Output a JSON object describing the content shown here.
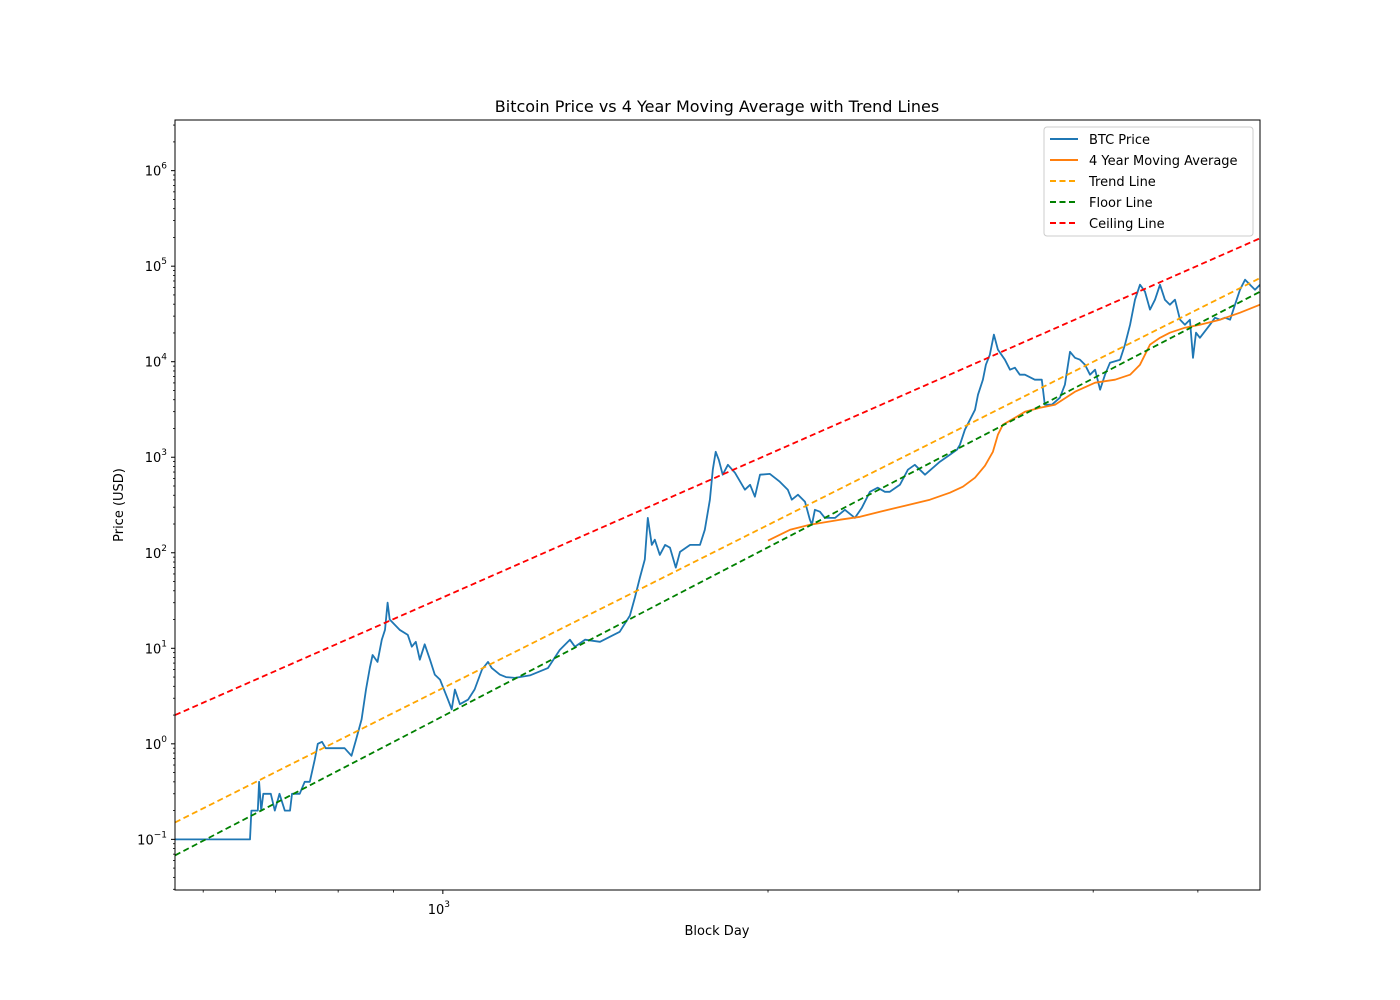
{
  "chart_data": {
    "type": "line",
    "title": "Bitcoin Price vs 4 Year Moving Average with Trend Lines",
    "xlabel": "Block Day",
    "ylabel": "Price (USD)",
    "xscale": "log",
    "yscale": "log",
    "xlim": [
      565,
      5708
    ],
    "ylim": [
      0.0295,
      3390000
    ],
    "grid": false,
    "legend_position": "top-right",
    "x_tick_labels": [
      {
        "value": 1000,
        "base": "10",
        "exp": "3"
      }
    ],
    "y_tick_labels": [
      {
        "value": 0.1,
        "base": "10",
        "exp": "−1"
      },
      {
        "value": 1,
        "base": "10",
        "exp": "0"
      },
      {
        "value": 10,
        "base": "10",
        "exp": "1"
      },
      {
        "value": 100,
        "base": "10",
        "exp": "2"
      },
      {
        "value": 1000,
        "base": "10",
        "exp": "3"
      },
      {
        "value": 10000,
        "base": "10",
        "exp": "4"
      },
      {
        "value": 100000,
        "base": "10",
        "exp": "5"
      },
      {
        "value": 1000000,
        "base": "10",
        "exp": "6"
      }
    ],
    "series": [
      {
        "name": "BTC Price",
        "color": "#1f77b4",
        "style": "solid",
        "points": [
          [
            565,
            0.1
          ],
          [
            663,
            0.1
          ],
          [
            665,
            0.2
          ],
          [
            674,
            0.2
          ],
          [
            676,
            0.4
          ],
          [
            679,
            0.2
          ],
          [
            682,
            0.3
          ],
          [
            693,
            0.3
          ],
          [
            699,
            0.2
          ],
          [
            706,
            0.3
          ],
          [
            714,
            0.2
          ],
          [
            722,
            0.2
          ],
          [
            725,
            0.3
          ],
          [
            737,
            0.3
          ],
          [
            745,
            0.4
          ],
          [
            753,
            0.4
          ],
          [
            761,
            0.68
          ],
          [
            766,
            1.0
          ],
          [
            773,
            1.05
          ],
          [
            779,
            0.9
          ],
          [
            811,
            0.9
          ],
          [
            823,
            0.75
          ],
          [
            831,
            1.1
          ],
          [
            841,
            1.8
          ],
          [
            849,
            3.7
          ],
          [
            856,
            6.3
          ],
          [
            861,
            8.5
          ],
          [
            870,
            7.2
          ],
          [
            878,
            12.3
          ],
          [
            884,
            15.6
          ],
          [
            889,
            30
          ],
          [
            893,
            20
          ],
          [
            912,
            15.6
          ],
          [
            928,
            13.8
          ],
          [
            936,
            10.4
          ],
          [
            944,
            11.7
          ],
          [
            952,
            7.6
          ],
          [
            962,
            11
          ],
          [
            973,
            7.6
          ],
          [
            983,
            5.3
          ],
          [
            994,
            4.7
          ],
          [
            1011,
            2.9
          ],
          [
            1019,
            2.3
          ],
          [
            1026,
            3.7
          ],
          [
            1037,
            2.6
          ],
          [
            1055,
            2.9
          ],
          [
            1070,
            3.7
          ],
          [
            1087,
            6.0
          ],
          [
            1101,
            7.2
          ],
          [
            1110,
            6.2
          ],
          [
            1129,
            5.3
          ],
          [
            1144,
            5.0
          ],
          [
            1166,
            4.9
          ],
          [
            1204,
            5.2
          ],
          [
            1251,
            6.2
          ],
          [
            1283,
            9.6
          ],
          [
            1311,
            12.3
          ],
          [
            1325,
            10.4
          ],
          [
            1354,
            12.3
          ],
          [
            1398,
            11.7
          ],
          [
            1458,
            14.9
          ],
          [
            1490,
            22
          ],
          [
            1506,
            34
          ],
          [
            1522,
            55
          ],
          [
            1538,
            85
          ],
          [
            1548,
            232
          ],
          [
            1561,
            121
          ],
          [
            1571,
            137
          ],
          [
            1588,
            95
          ],
          [
            1606,
            121
          ],
          [
            1623,
            113
          ],
          [
            1643,
            70
          ],
          [
            1658,
            102
          ],
          [
            1694,
            121
          ],
          [
            1730,
            121
          ],
          [
            1748,
            174
          ],
          [
            1767,
            359
          ],
          [
            1778,
            740
          ],
          [
            1789,
            1140
          ],
          [
            1801,
            940
          ],
          [
            1816,
            656
          ],
          [
            1836,
            834
          ],
          [
            1864,
            688
          ],
          [
            1904,
            457
          ],
          [
            1925,
            515
          ],
          [
            1945,
            386
          ],
          [
            1966,
            656
          ],
          [
            2008,
            670
          ],
          [
            2051,
            554
          ],
          [
            2086,
            457
          ],
          [
            2104,
            359
          ],
          [
            2132,
            405
          ],
          [
            2164,
            342
          ],
          [
            2187,
            222
          ],
          [
            2196,
            196
          ],
          [
            2210,
            282
          ],
          [
            2234,
            269
          ],
          [
            2258,
            232
          ],
          [
            2307,
            232
          ],
          [
            2356,
            282
          ],
          [
            2407,
            232
          ],
          [
            2443,
            296
          ],
          [
            2485,
            435
          ],
          [
            2527,
            480
          ],
          [
            2566,
            435
          ],
          [
            2593,
            435
          ],
          [
            2649,
            515
          ],
          [
            2695,
            740
          ],
          [
            2735,
            834
          ],
          [
            2795,
            656
          ],
          [
            2885,
            897
          ],
          [
            2947,
            1060
          ],
          [
            2992,
            1200
          ],
          [
            3011,
            1350
          ],
          [
            3043,
            1940
          ],
          [
            3076,
            2470
          ],
          [
            3109,
            3140
          ],
          [
            3129,
            4510
          ],
          [
            3162,
            6480
          ],
          [
            3182,
            9310
          ],
          [
            3209,
            11800
          ],
          [
            3237,
            19200
          ],
          [
            3265,
            13400
          ],
          [
            3314,
            10500
          ],
          [
            3350,
            8250
          ],
          [
            3385,
            8650
          ],
          [
            3421,
            7310
          ],
          [
            3458,
            7310
          ],
          [
            3532,
            6480
          ],
          [
            3585,
            6480
          ],
          [
            3608,
            3550
          ],
          [
            3663,
            3550
          ],
          [
            3726,
            4200
          ],
          [
            3766,
            5740
          ],
          [
            3807,
            12700
          ],
          [
            3848,
            11000
          ],
          [
            3889,
            10500
          ],
          [
            3931,
            9310
          ],
          [
            3973,
            7310
          ],
          [
            4016,
            8250
          ],
          [
            4059,
            5090
          ],
          [
            4102,
            7310
          ],
          [
            4146,
            9770
          ],
          [
            4236,
            10500
          ],
          [
            4281,
            15100
          ],
          [
            4327,
            24400
          ],
          [
            4373,
            44600
          ],
          [
            4420,
            64000
          ],
          [
            4467,
            54100
          ],
          [
            4515,
            35100
          ],
          [
            4563,
            44600
          ],
          [
            4612,
            64000
          ],
          [
            4661,
            44600
          ],
          [
            4711,
            39500
          ],
          [
            4762,
            44600
          ],
          [
            4813,
            27600
          ],
          [
            4864,
            24400
          ],
          [
            4916,
            27500
          ],
          [
            4948,
            11000
          ],
          [
            4980,
            20100
          ],
          [
            5022,
            17800
          ],
          [
            5131,
            24400
          ],
          [
            5186,
            28900
          ],
          [
            5242,
            27500
          ],
          [
            5298,
            28900
          ],
          [
            5355,
            27500
          ],
          [
            5412,
            39500
          ],
          [
            5470,
            56700
          ],
          [
            5529,
            72200
          ],
          [
            5588,
            64000
          ],
          [
            5648,
            56700
          ],
          [
            5708,
            64000
          ]
        ]
      },
      {
        "name": "4 Year Moving Average",
        "color": "#ff7f0e",
        "style": "solid",
        "points": [
          [
            2000,
            134
          ],
          [
            2096,
            174
          ],
          [
            2187,
            196
          ],
          [
            2332,
            222
          ],
          [
            2433,
            238
          ],
          [
            2539,
            269
          ],
          [
            2678,
            311
          ],
          [
            2824,
            359
          ],
          [
            2947,
            425
          ],
          [
            3030,
            491
          ],
          [
            3109,
            610
          ],
          [
            3176,
            815
          ],
          [
            3230,
            1140
          ],
          [
            3265,
            1720
          ],
          [
            3300,
            2190
          ],
          [
            3385,
            2590
          ],
          [
            3458,
            2990
          ],
          [
            3571,
            3300
          ],
          [
            3687,
            3550
          ],
          [
            3848,
            4850
          ],
          [
            4016,
            6030
          ],
          [
            4191,
            6480
          ],
          [
            4327,
            7310
          ],
          [
            4420,
            9310
          ],
          [
            4515,
            15100
          ],
          [
            4612,
            17800
          ],
          [
            4711,
            20100
          ],
          [
            4864,
            22700
          ],
          [
            5022,
            24400
          ],
          [
            5242,
            27500
          ],
          [
            5470,
            32600
          ],
          [
            5708,
            39500
          ]
        ]
      },
      {
        "name": "Trend Line",
        "color": "#ffa500",
        "style": "dashed",
        "points": [
          [
            565,
            0.15
          ],
          [
            5708,
            75000
          ]
        ]
      },
      {
        "name": "Floor Line",
        "color": "#008000",
        "style": "dashed",
        "points": [
          [
            565,
            0.068
          ],
          [
            5708,
            54000
          ]
        ]
      },
      {
        "name": "Ceiling Line",
        "color": "#ff0000",
        "style": "dashed",
        "points": [
          [
            565,
            2.0
          ],
          [
            5708,
            196000
          ]
        ]
      }
    ]
  }
}
